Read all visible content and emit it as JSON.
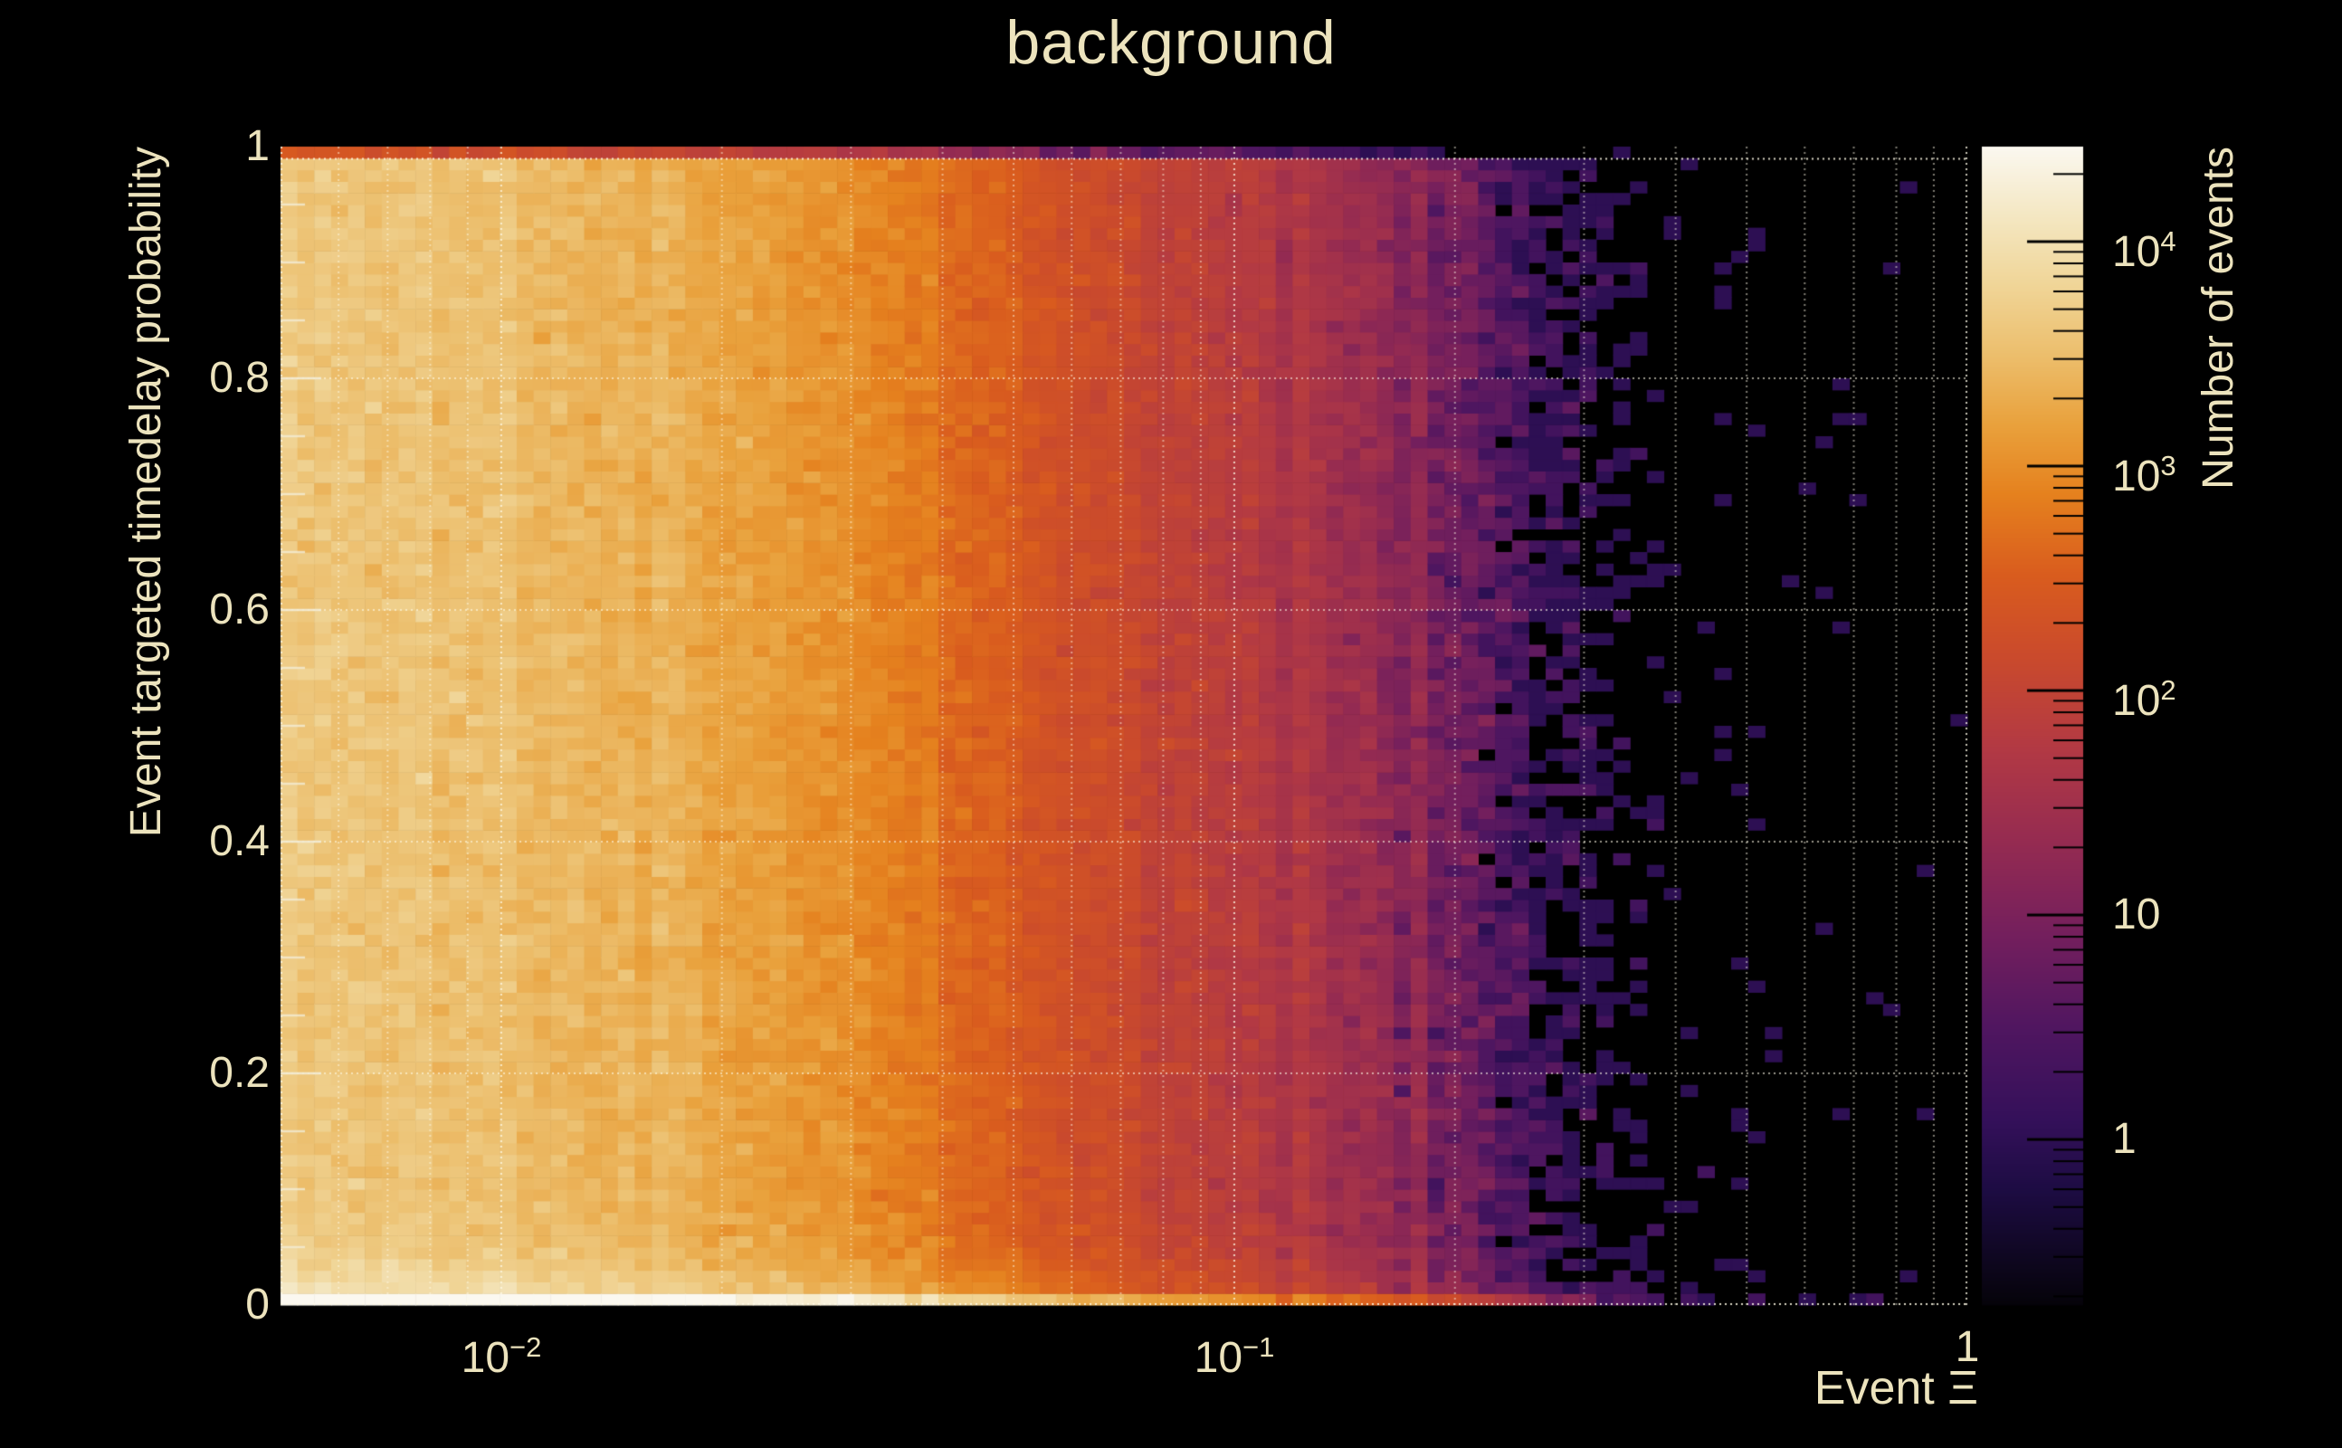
{
  "title": "background",
  "colors": {
    "background": "#000000",
    "text": "#ECE3BD",
    "grid": "#FFFBE8",
    "axis_tick": "#F0EAD0",
    "colorbar_tick": "#000000",
    "top_row_red": "#C53D12",
    "bottom_row_white": "#FAF6EC",
    "speckle_purple": "#2F0E52"
  },
  "axes": {
    "x": {
      "label": "Event Ξ",
      "scale": "log",
      "min": 0.005,
      "max": 1.0,
      "ticks": [
        {
          "value": 0.01,
          "base": "10",
          "exp": "−2"
        },
        {
          "value": 0.1,
          "base": "10",
          "exp": "−1"
        },
        {
          "value": 1.0,
          "base": "1",
          "exp": ""
        }
      ]
    },
    "y": {
      "label": "Event targeted timedelay probability",
      "scale": "linear",
      "min": 0,
      "max": 1,
      "ticks": [
        {
          "value": 1.0,
          "label": "1"
        },
        {
          "value": 0.8,
          "label": "0.8"
        },
        {
          "value": 0.6,
          "label": "0.6"
        },
        {
          "value": 0.4,
          "label": "0.4"
        },
        {
          "value": 0.2,
          "label": "0.2"
        },
        {
          "value": 0.0,
          "label": "0"
        }
      ]
    },
    "z": {
      "label": "Number of events",
      "scale": "log",
      "min": 0.183,
      "max": 26500,
      "ticks": [
        {
          "value": 10000,
          "base": "10",
          "exp": "4"
        },
        {
          "value": 1000,
          "base": "10",
          "exp": "3"
        },
        {
          "value": 100,
          "base": "10",
          "exp": "2"
        },
        {
          "value": 10,
          "base": "10",
          "exp": ""
        },
        {
          "value": 1,
          "base": "1",
          "exp": ""
        }
      ]
    }
  },
  "chart_data": {
    "type": "heatmap",
    "title": "background",
    "xlabel": "Event Ξ",
    "ylabel": "Event targeted timedelay probability",
    "zlabel": "Number of events",
    "x_scale": "log",
    "x_range": [
      0.005,
      1.0
    ],
    "y_scale": "linear",
    "y_range": [
      0,
      1
    ],
    "z_scale": "log",
    "z_range": [
      0.183,
      26500
    ],
    "n_bins_x": 100,
    "n_bins_y": 100,
    "values_are_estimated": true,
    "colormap": "inferno-like: black → dark purple → crimson → red-orange → orange → gold → cream-white",
    "colormap_stops": [
      [
        0.0,
        "#050309"
      ],
      [
        0.1,
        "#1d0c43"
      ],
      [
        0.16,
        "#34105a"
      ],
      [
        0.24,
        "#501660"
      ],
      [
        0.32,
        "#741f5d"
      ],
      [
        0.4,
        "#952b51"
      ],
      [
        0.48,
        "#b23944"
      ],
      [
        0.56,
        "#ca4a2c"
      ],
      [
        0.63,
        "#d95c1e"
      ],
      [
        0.7,
        "#e5811e"
      ],
      [
        0.76,
        "#e9a13c"
      ],
      [
        0.82,
        "#ecbe6c"
      ],
      [
        0.88,
        "#f0d597"
      ],
      [
        0.94,
        "#f4e7c2"
      ],
      [
        1.0,
        "#fbf8f0"
      ]
    ],
    "mean_count_profile": {
      "note": "estimated mean events per bin vs Event Ξ (counts fall with Ξ, nearly independent of y); bins with 0 events render black; isolated 1–2 count bins render dark purple",
      "log10_x": [
        -2.301,
        -2.0,
        -1.699,
        -1.523,
        -1.35,
        -1.222,
        -1.08,
        -1.0,
        -0.886,
        -0.796,
        -0.721,
        -0.658,
        -0.585,
        -0.523,
        -0.398,
        -0.222,
        0.0
      ],
      "log10_counts": [
        3.62,
        3.5,
        3.25,
        3.05,
        2.62,
        2.25,
        1.95,
        1.8,
        1.55,
        1.3,
        1.0,
        0.7,
        0.3,
        -0.1,
        -1.1,
        -1.7,
        -2.3
      ]
    },
    "y_modulation": {
      "bottom_row_factor": 15,
      "top_row_factor": 0.05,
      "near_bottom_boost": "1 + 2.6*exp(-y/0.022)",
      "note": "lowest y row is near-white (≈2×10^4 events at small Ξ); top y row is dim red (≈10^2 events at small Ξ)"
    },
    "noise": {
      "cell_sigma_dex": 0.07,
      "column_sigma_dex": 0.035,
      "transition_column_sigma_dex": 0.09,
      "sampling": "Poisson for mean < 30",
      "seed": 77
    },
    "grid": {
      "style": "dotted",
      "x_lines": "all log decade and minor-decade positions (0.006–0.009, 0.01, 0.02–0.09, 0.1, 0.2–0.9, 1)",
      "y_lines": [
        0.2,
        0.4,
        0.6,
        0.8
      ],
      "extra_top_line_y": 0.9895,
      "bottom_line_y": 0.0
    },
    "legend_position": "right colorbar"
  }
}
